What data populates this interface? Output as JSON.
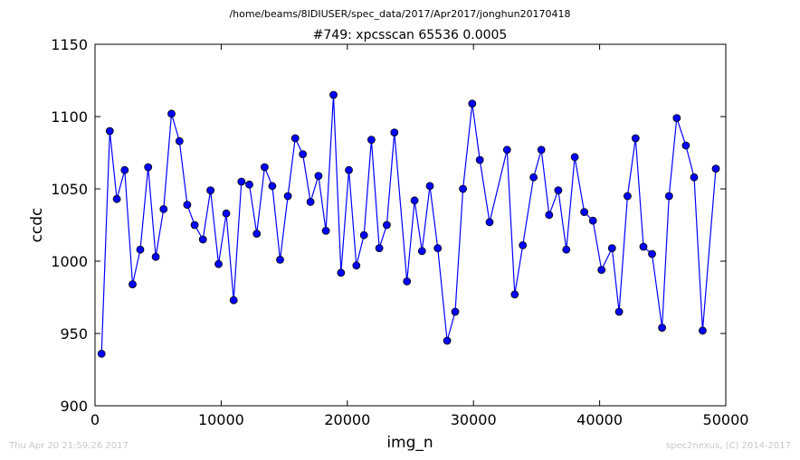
{
  "header": {
    "path": "/home/beams/8IDIUSER/spec_data/2017/Apr2017/jonghun20170418",
    "scan_title": "#749: xpcsscan 65536 0.0005"
  },
  "footer": {
    "timestamp": "Thu Apr 20 21:59:26 2017",
    "credit": "spec2nexus, (C) 2014-2017"
  },
  "chart_data": {
    "type": "line",
    "title": "#749: xpcsscan 65536 0.0005",
    "xlabel": "img_n",
    "ylabel": "ccdc",
    "xlim": [
      0,
      50000
    ],
    "ylim": [
      900,
      1150
    ],
    "xticks": [
      0,
      10000,
      20000,
      30000,
      40000,
      50000
    ],
    "yticks": [
      900,
      950,
      1000,
      1050,
      1100,
      1150
    ],
    "grid": false,
    "line_color": "#0000ff",
    "marker": "circle",
    "marker_color": "#0000ff",
    "series": [
      {
        "x": [
          520,
          1170,
          1730,
          2350,
          2980,
          3590,
          4210,
          4810,
          5440,
          6060,
          6690,
          7310,
          7900,
          8550,
          9150,
          9790,
          10400,
          10990,
          11610,
          12230,
          12820,
          13440,
          14050,
          14670,
          15290,
          15870,
          16470,
          17080,
          17710,
          18300,
          18900,
          19500,
          20120,
          20720,
          21320,
          21910,
          22530,
          23130,
          23730,
          24730,
          25330,
          25920,
          26540,
          27170,
          27910,
          28550,
          29170,
          29900,
          30500,
          31280,
          32660,
          33270,
          33910,
          34760,
          35380,
          36000,
          36720,
          37360,
          38030,
          38780,
          39470,
          40150,
          40980,
          41540,
          42210,
          42850,
          43470,
          44150,
          44950,
          45500,
          46110,
          46840,
          47490,
          48160,
          49210
        ],
        "y": [
          936,
          1090,
          1043,
          1063,
          984,
          1008,
          1065,
          1003,
          1036,
          1102,
          1083,
          1039,
          1025,
          1015,
          1049,
          998,
          1033,
          973,
          1055,
          1053,
          1019,
          1065,
          1052,
          1001,
          1045,
          1085,
          1074,
          1041,
          1059,
          1021,
          1115,
          992,
          1063,
          997,
          1018,
          1084,
          1009,
          1025,
          1089,
          986,
          1042,
          1007,
          1052,
          1009,
          945,
          965,
          1050,
          1109,
          1070,
          1027,
          1077,
          977,
          1011,
          1058,
          1077,
          1032,
          1049,
          1008,
          1072,
          1034,
          1028,
          994,
          1009,
          965,
          1045,
          1085,
          1010,
          1005,
          954,
          1045,
          1099,
          1080,
          1058,
          952,
          1064
        ]
      }
    ]
  }
}
